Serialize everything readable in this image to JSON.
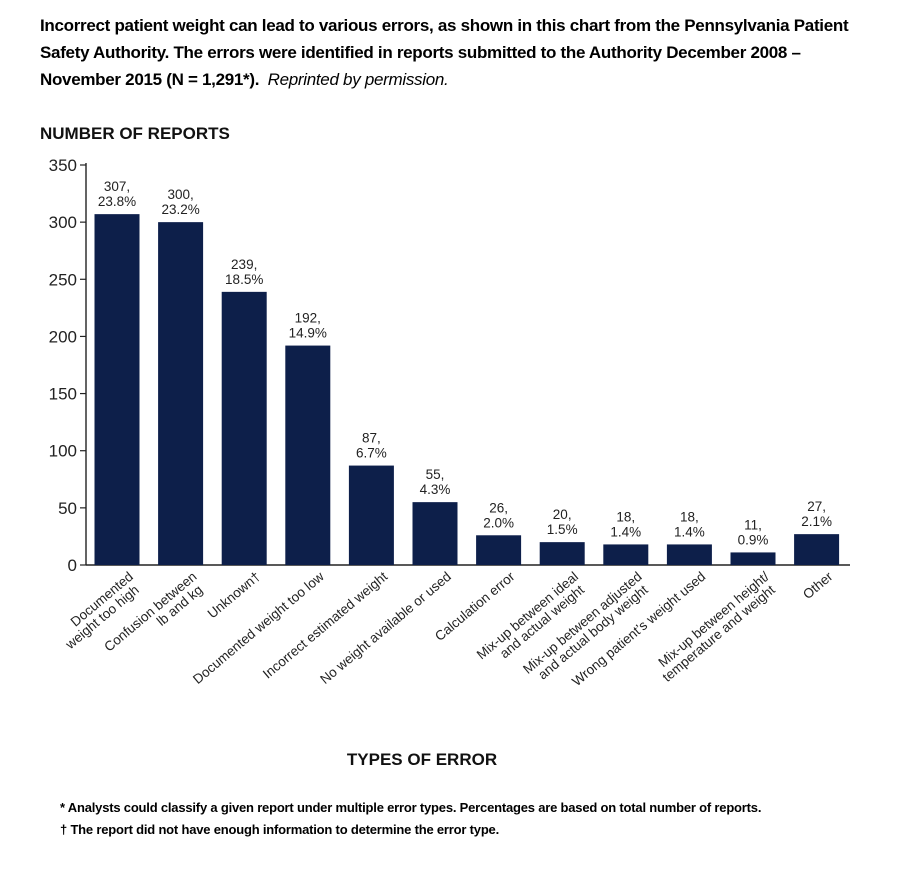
{
  "caption": {
    "text": "Incorrect patient weight can lead to various errors, as shown in this chart from the Pennsylvania Patient Safety Authority. The errors were identified in reports submitted to the Authority December 2008 – November 2015 (N = 1,291*).",
    "reprint_note": "Reprinted by permission."
  },
  "chart_data": {
    "type": "bar",
    "ylabel": "NUMBER OF REPORTS",
    "xlabel": "TYPES OF ERROR",
    "ylim": [
      0,
      350
    ],
    "yticks": [
      0,
      50,
      100,
      150,
      200,
      250,
      300,
      350
    ],
    "bar_color": "#0d1f4a",
    "grid": false,
    "categories": [
      [
        "Documented",
        "weight too high"
      ],
      [
        "Confusion between",
        "lb and kg"
      ],
      [
        "Unknown†"
      ],
      [
        "Documented weight too low"
      ],
      [
        "Incorrect estimated weight"
      ],
      [
        "No weight available or used"
      ],
      [
        "Calculation error"
      ],
      [
        "Mix-up between ideal",
        "and actual weight"
      ],
      [
        "Mix-up between adjusted",
        "and actual body weight"
      ],
      [
        "Wrong patient’s weight used"
      ],
      [
        "Mix-up between height/",
        "temperature and weight"
      ],
      [
        "Other"
      ]
    ],
    "values": [
      307,
      300,
      239,
      192,
      87,
      55,
      26,
      20,
      18,
      18,
      11,
      27
    ],
    "data_labels": [
      [
        "307,",
        "23.8%"
      ],
      [
        "300,",
        "23.2%"
      ],
      [
        "239,",
        "18.5%"
      ],
      [
        "192,",
        "14.9%"
      ],
      [
        "87,",
        "6.7%"
      ],
      [
        "55,",
        "4.3%"
      ],
      [
        "26,",
        "2.0%"
      ],
      [
        "20,",
        "1.5%"
      ],
      [
        "18,",
        "1.4%"
      ],
      [
        "18,",
        "1.4%"
      ],
      [
        "11,",
        "0.9%"
      ],
      [
        "27,",
        "2.1%"
      ]
    ]
  },
  "footnotes": [
    "* Analysts could classify a given report under multiple error types. Percentages are based on total number of reports.",
    "† The report did not have enough information to determine the error type."
  ]
}
